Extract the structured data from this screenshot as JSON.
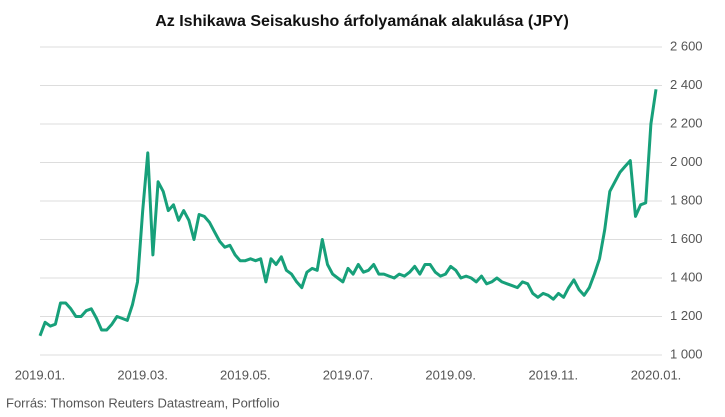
{
  "chart_data": {
    "type": "line",
    "title": "Az Ishikawa Seisakusho árfolyamának alakulása (JPY)",
    "source": "Forrás: Thomson Reuters Datastream, Portfolio",
    "categories": [
      "2019.01.",
      null,
      null,
      null,
      null,
      null,
      null,
      null,
      null,
      null,
      null,
      null,
      null,
      null,
      null,
      null,
      null,
      null,
      null,
      null,
      "2019.03.",
      null,
      null,
      null,
      null,
      null,
      null,
      null,
      null,
      null,
      null,
      null,
      null,
      null,
      null,
      null,
      null,
      null,
      null,
      null,
      "2019.05.",
      null,
      null,
      null,
      null,
      null,
      null,
      null,
      null,
      null,
      null,
      null,
      null,
      null,
      null,
      null,
      null,
      null,
      null,
      null,
      "2019.07.",
      null,
      null,
      null,
      null,
      null,
      null,
      null,
      null,
      null,
      null,
      null,
      null,
      null,
      null,
      null,
      null,
      null,
      null,
      null,
      "2019.09.",
      null,
      null,
      null,
      null,
      null,
      null,
      null,
      null,
      null,
      null,
      null,
      null,
      null,
      null,
      null,
      null,
      null,
      null,
      null,
      "2019.11.",
      null,
      null,
      null,
      null,
      null,
      null,
      null,
      null,
      null,
      null,
      null,
      null,
      null,
      null,
      null,
      null,
      null,
      null,
      null,
      "2020.01."
    ],
    "series": [
      {
        "name": "Ishikawa Seisakusho",
        "color": "#17a07a",
        "values": [
          1100,
          1170,
          1150,
          1160,
          1270,
          1270,
          1240,
          1200,
          1200,
          1230,
          1240,
          1190,
          1130,
          1130,
          1160,
          1200,
          1190,
          1180,
          1260,
          1380,
          1750,
          2050,
          1520,
          1900,
          1850,
          1750,
          1780,
          1700,
          1750,
          1700,
          1600,
          1730,
          1720,
          1690,
          1640,
          1590,
          1560,
          1570,
          1520,
          1490,
          1490,
          1500,
          1490,
          1500,
          1380,
          1500,
          1470,
          1510,
          1440,
          1420,
          1380,
          1350,
          1430,
          1450,
          1440,
          1600,
          1470,
          1420,
          1400,
          1380,
          1450,
          1420,
          1470,
          1430,
          1440,
          1470,
          1420,
          1420,
          1410,
          1400,
          1420,
          1410,
          1430,
          1460,
          1420,
          1470,
          1470,
          1430,
          1410,
          1420,
          1460,
          1440,
          1400,
          1410,
          1400,
          1380,
          1410,
          1370,
          1380,
          1400,
          1380,
          1370,
          1360,
          1350,
          1380,
          1370,
          1320,
          1300,
          1320,
          1310,
          1290,
          1320,
          1300,
          1350,
          1390,
          1340,
          1310,
          1350,
          1420,
          1500,
          1650,
          1850,
          1900,
          1950,
          1980,
          2010,
          1720,
          1780,
          1790,
          2200,
          2380
        ]
      }
    ],
    "ylim": [
      1000,
      2600
    ],
    "yticks": [
      {
        "value": 1000,
        "label": "1 000"
      },
      {
        "value": 1200,
        "label": "1 200"
      },
      {
        "value": 1400,
        "label": "1 400"
      },
      {
        "value": 1600,
        "label": "1 600"
      },
      {
        "value": 1800,
        "label": "1 800"
      },
      {
        "value": 2000,
        "label": "2 000"
      },
      {
        "value": 2200,
        "label": "2 200"
      },
      {
        "value": 2400,
        "label": "2 400"
      },
      {
        "value": 2600,
        "label": "2 600"
      }
    ],
    "grid": true
  }
}
